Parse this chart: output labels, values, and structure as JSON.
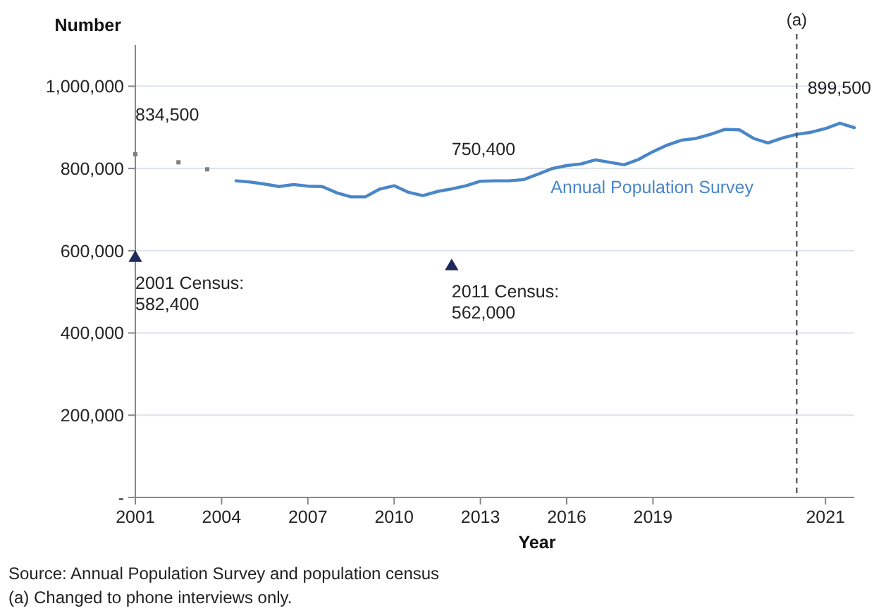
{
  "chart_data": {
    "type": "line",
    "ylabel": "Number",
    "xlabel": "Year",
    "categories": [
      "2001",
      null,
      null,
      null,
      null,
      null,
      "2004",
      null,
      null,
      null,
      null,
      null,
      "2007",
      null,
      null,
      null,
      null,
      null,
      "2010",
      null,
      null,
      null,
      null,
      null,
      "2013",
      null,
      null,
      null,
      null,
      null,
      "2016",
      null,
      null,
      null,
      null,
      null,
      "2019",
      null,
      null,
      null,
      null,
      null,
      null,
      null,
      null,
      null,
      null,
      null,
      "2021",
      null,
      null
    ],
    "ylim": [
      0,
      1100000
    ],
    "yticks": [
      {
        "value": 0,
        "label": "-"
      },
      {
        "value": 200000,
        "label": "200,000"
      },
      {
        "value": 400000,
        "label": "400,000"
      },
      {
        "value": 600000,
        "label": "600,000"
      },
      {
        "value": 800000,
        "label": "800,000"
      },
      {
        "value": 1000000,
        "label": "1,000,000"
      }
    ],
    "grid": "y",
    "line_style": "solid",
    "marker": "none",
    "series": [
      {
        "type": "scatter",
        "marker": "square",
        "color": "#7f7f7f",
        "values": [
          834500,
          null,
          null,
          815000,
          null,
          798000,
          null,
          null,
          null,
          null,
          null,
          null,
          null,
          null,
          null,
          null,
          null,
          null,
          null,
          null,
          null,
          null,
          null,
          null,
          null,
          null,
          null,
          null,
          null,
          null,
          null,
          null,
          null,
          null,
          null,
          null,
          null,
          null,
          null,
          null,
          null,
          null,
          null,
          null,
          null,
          null,
          null,
          null,
          null,
          null,
          null
        ]
      },
      {
        "type": "scatter",
        "marker": "triangle",
        "color": "#1f2a5c",
        "values": [
          582400,
          null,
          null,
          null,
          null,
          null,
          null,
          null,
          null,
          null,
          null,
          null,
          null,
          null,
          null,
          null,
          null,
          null,
          null,
          null,
          null,
          null,
          562000,
          null,
          null,
          null,
          null,
          null,
          null,
          null,
          null,
          null,
          null,
          null,
          null,
          null,
          null,
          null,
          null,
          null,
          null,
          null,
          null,
          null,
          null,
          null,
          null,
          null,
          null,
          null,
          null
        ]
      },
      {
        "name": "Annual Population Survey",
        "color": "#4a86c8",
        "values": [
          null,
          null,
          null,
          null,
          null,
          null,
          null,
          770000,
          767000,
          762000,
          756000,
          761000,
          757000,
          756000,
          741000,
          731000,
          731000,
          750000,
          758000,
          742000,
          734000,
          744000,
          750400,
          758000,
          769000,
          770000,
          770000,
          773000,
          786000,
          800000,
          807000,
          811000,
          821000,
          815000,
          809000,
          822000,
          841000,
          857000,
          869000,
          873000,
          883000,
          895000,
          894000,
          873000,
          862000,
          874000,
          883000,
          888000,
          897000,
          910000,
          899500
        ]
      }
    ],
    "annotations": [
      {
        "text": "834,500",
        "x": "2001",
        "y": 834500
      },
      {
        "text": "750,400",
        "y": 750400
      },
      {
        "text": "899,500",
        "y": 899500
      },
      {
        "text": "2001 Census:\n582,400",
        "x": "2001",
        "y": 582400
      },
      "(a)",
      "2011 Census:\n562,000",
      "Source: Annual Population Survey and population census",
      "(a) Changed to phone interviews only."
    ]
  }
}
